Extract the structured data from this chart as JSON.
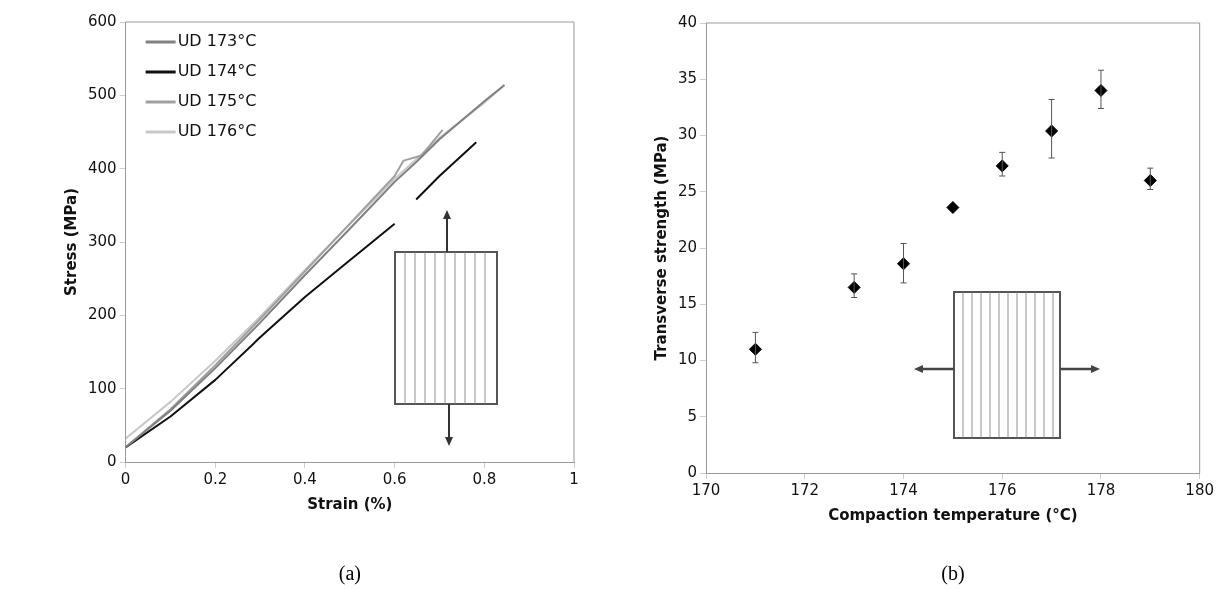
{
  "chart_data": [
    {
      "type": "line",
      "xlabel": "Strain (%)",
      "ylabel": "Stress (MPa)",
      "xlim": [
        0,
        1
      ],
      "xticks": [
        0,
        0.2,
        0.4,
        0.6,
        0.8,
        1
      ],
      "ylim": [
        0,
        600
      ],
      "yticks": [
        0,
        100,
        200,
        300,
        400,
        500,
        600
      ],
      "grid": false,
      "legend": "top left",
      "marker": "none",
      "line_style": "solid",
      "annotations": [
        "(a)"
      ],
      "series": [
        {
          "name": "UD 173°C",
          "color": "#808080",
          "x": [
            0,
            0.1,
            0.2,
            0.3,
            0.4,
            0.5,
            0.6,
            0.65,
            0.7,
            0.75,
            0.8,
            0.845
          ],
          "values": [
            20,
            70,
            128,
            190,
            255,
            318,
            382,
            410,
            440,
            466,
            492,
            514
          ]
        },
        {
          "name": "UD 174°C",
          "color": "#101010",
          "x": [
            0,
            0.1,
            0.2,
            0.3,
            0.4,
            0.5,
            0.6,
            0.62,
            0.648,
            0.7,
            0.782
          ],
          "values": [
            20,
            62,
            112,
            170,
            225,
            275,
            325,
            null,
            358,
            390,
            436
          ]
        },
        {
          "name": "UD 175°C",
          "color": "#a0a0a0",
          "x": [
            0,
            0.1,
            0.2,
            0.3,
            0.4,
            0.5,
            0.6,
            0.62,
            0.66,
            0.707
          ],
          "values": [
            20,
            72,
            132,
            195,
            260,
            325,
            390,
            411,
            418,
            453
          ]
        },
        {
          "name": "UD 176°C",
          "color": "#c8c8c8",
          "x": [
            0,
            0.1,
            0.2,
            0.3,
            0.4,
            0.5,
            0.6,
            0.7,
            0.8,
            0.845
          ],
          "values": [
            32,
            82,
            138,
            198,
            262,
            324,
            386,
            442,
            490,
            514
          ]
        }
      ]
    },
    {
      "type": "scatter",
      "xlabel": "Compaction temperature (°C)",
      "ylabel": "Transverse strength (MPa)",
      "xlim": [
        170,
        180
      ],
      "xticks": [
        170,
        172,
        174,
        176,
        178,
        180
      ],
      "ylim": [
        0,
        40
      ],
      "yticks": [
        0,
        5,
        10,
        15,
        20,
        25,
        30,
        35,
        40
      ],
      "grid": false,
      "legend": false,
      "marker": "diamond",
      "annotations": [
        "(b)"
      ],
      "series": [
        {
          "color": "#000000",
          "x": [
            171,
            173,
            174,
            175,
            176,
            177,
            178,
            179
          ],
          "values": [
            11.0,
            16.5,
            18.6,
            23.6,
            27.3,
            30.4,
            34.0,
            26.0
          ],
          "errors": [
            [
              9.8,
              12.5
            ],
            [
              15.6,
              17.7
            ],
            [
              16.9,
              20.4
            ],
            null,
            [
              26.4,
              28.5
            ],
            [
              28.0,
              33.2
            ],
            [
              32.4,
              35.8
            ],
            [
              25.2,
              27.1
            ]
          ]
        }
      ]
    }
  ]
}
